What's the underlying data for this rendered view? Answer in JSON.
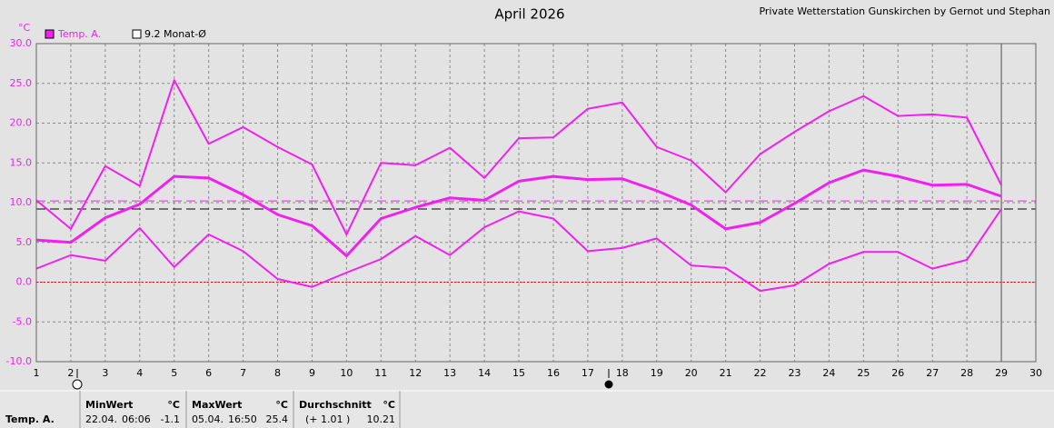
{
  "chart_data": {
    "type": "line",
    "title": "April 2026",
    "subtitle": "Private Wetterstation Gunskirchen by Gernot und Stephan",
    "ylabel": "°C",
    "x": [
      1,
      2,
      3,
      4,
      5,
      6,
      7,
      8,
      9,
      10,
      11,
      12,
      13,
      14,
      15,
      16,
      17,
      18,
      19,
      20,
      21,
      22,
      23,
      24,
      25,
      26,
      27,
      28,
      29
    ],
    "series": [
      {
        "name": "Temp. A.",
        "color": "#f020f0",
        "max": [
          10.3,
          6.7,
          14.6,
          12.1,
          25.4,
          17.4,
          19.5,
          17.0,
          14.8,
          6.0,
          15.0,
          14.7,
          16.9,
          13.1,
          18.1,
          18.2,
          21.8,
          22.6,
          17.0,
          15.3,
          11.3,
          16.1,
          18.9,
          21.5,
          23.4,
          20.9,
          21.1,
          20.7,
          12.2
        ],
        "mean": [
          5.3,
          5.0,
          8.1,
          9.8,
          13.3,
          13.1,
          11.0,
          8.5,
          7.1,
          3.3,
          8.0,
          9.4,
          10.6,
          10.3,
          12.7,
          13.3,
          12.9,
          13.0,
          11.5,
          9.7,
          6.7,
          7.5,
          9.9,
          12.5,
          14.1,
          13.3,
          12.2,
          12.3,
          10.8
        ],
        "min": [
          1.7,
          3.4,
          2.7,
          6.8,
          1.9,
          6.0,
          3.9,
          0.4,
          -0.6,
          1.2,
          2.9,
          5.8,
          3.4,
          6.9,
          8.9,
          8.0,
          3.9,
          4.3,
          5.5,
          2.1,
          1.8,
          -1.1,
          -0.4,
          2.3,
          3.8,
          3.8,
          1.7,
          2.8,
          9.2
        ]
      }
    ],
    "reference_line": {
      "label": "9.2 Monat-Ø",
      "value": 9.2,
      "color": "#000000"
    },
    "xlim": [
      1,
      30
    ],
    "xticks": [
      1,
      2,
      3,
      4,
      5,
      6,
      7,
      8,
      9,
      10,
      11,
      12,
      13,
      14,
      15,
      16,
      17,
      18,
      19,
      20,
      21,
      22,
      23,
      24,
      25,
      26,
      27,
      28,
      29,
      30
    ],
    "ylim": [
      -10,
      30
    ],
    "yticks": [
      {
        "value": 30,
        "label": "30.0"
      },
      {
        "value": 25,
        "label": "25.0"
      },
      {
        "value": 20,
        "label": "20.0"
      },
      {
        "value": 15,
        "label": "15.0"
      },
      {
        "value": 10,
        "label": "10.0"
      },
      {
        "value": 5,
        "label": "5.0"
      },
      {
        "value": 0,
        "label": "0.0"
      },
      {
        "value": -5,
        "label": "-5.0"
      },
      {
        "value": -10,
        "label": "-10.0"
      }
    ],
    "grid": true
  },
  "summary_table": {
    "headers": [
      {
        "name": "MinWert",
        "unit": "°C"
      },
      {
        "name": "MaxWert",
        "unit": "°C"
      },
      {
        "name": "Durchschnitt",
        "unit": "°C"
      }
    ],
    "row": {
      "label": "Temp. A.",
      "min_date": "22.04.",
      "min_time": "06:06",
      "min": -1.1,
      "max_date": "05.04.",
      "max_time": "16:50",
      "max": 25.4,
      "deviation": "(+ 1.01 )",
      "mean": 10.21
    }
  }
}
